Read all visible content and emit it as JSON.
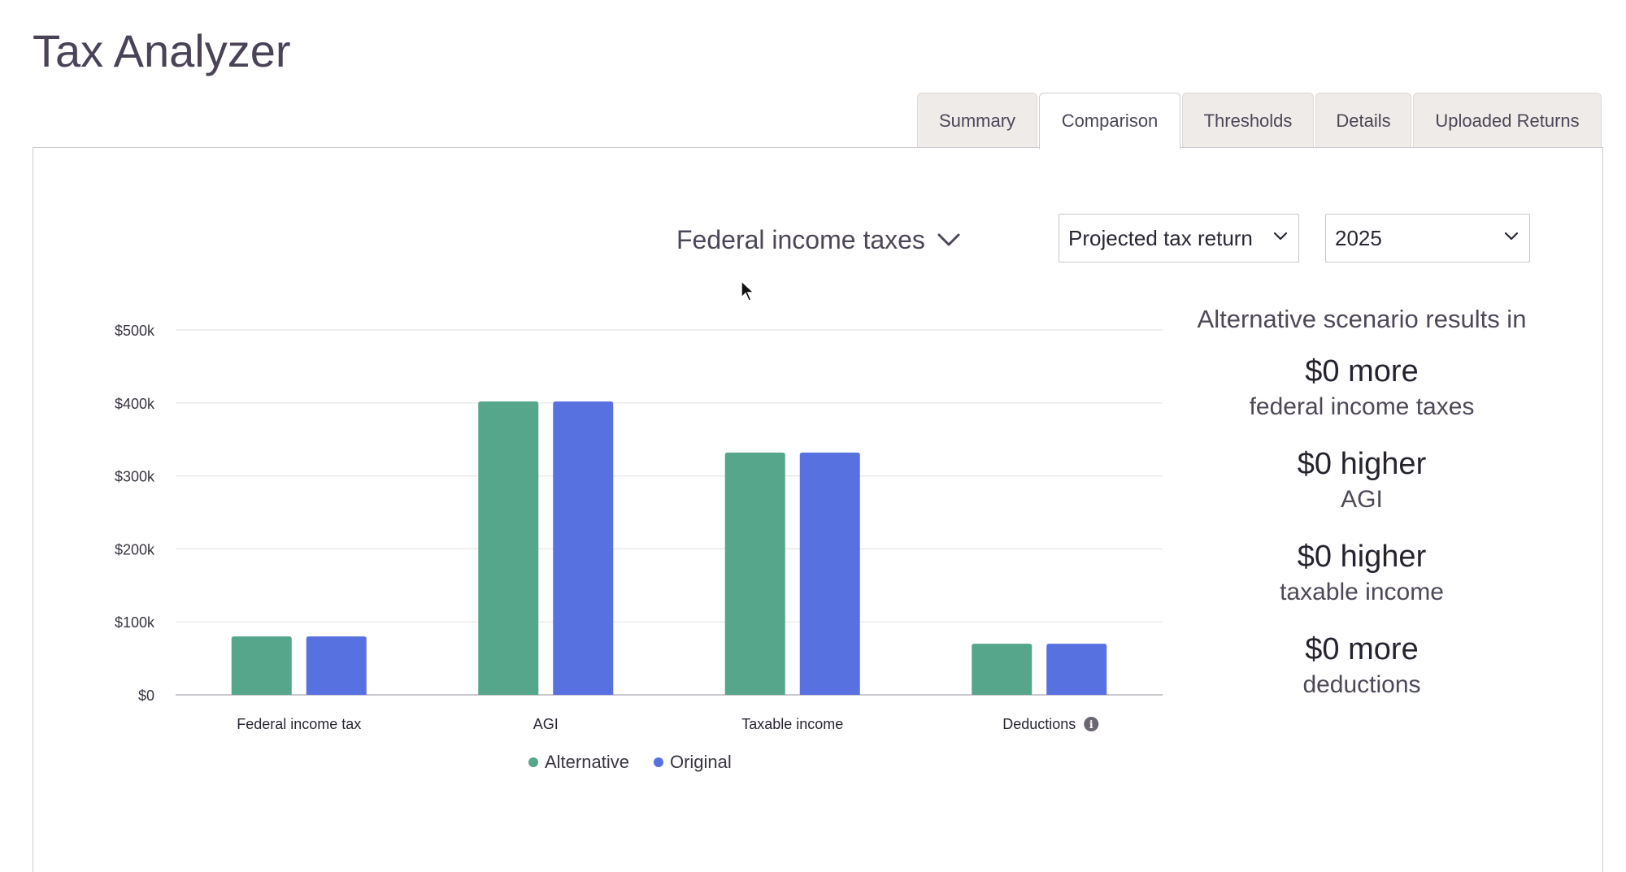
{
  "app": {
    "title": "Tax Analyzer"
  },
  "tabs": [
    {
      "label": "Summary",
      "active": false
    },
    {
      "label": "Comparison",
      "active": true
    },
    {
      "label": "Thresholds",
      "active": false
    },
    {
      "label": "Details",
      "active": false
    },
    {
      "label": "Uploaded Returns",
      "active": false
    }
  ],
  "controls": {
    "metric_label": "Federal income taxes",
    "return_type": "Projected tax return",
    "year": "2025"
  },
  "results": {
    "title": "Alternative scenario results in",
    "items": [
      {
        "value": "$0 more",
        "label": "federal income taxes"
      },
      {
        "value": "$0 higher",
        "label": "AGI"
      },
      {
        "value": "$0 higher",
        "label": "taxable income"
      },
      {
        "value": "$0 more",
        "label": "deductions"
      }
    ]
  },
  "colors": {
    "alternative": "#55a68a",
    "original": "#5871e0"
  },
  "chart_data": {
    "type": "bar",
    "categories": [
      "Federal income tax",
      "AGI",
      "Taxable income",
      "Deductions"
    ],
    "series": [
      {
        "name": "Alternative",
        "values": [
          80000,
          402000,
          332000,
          70000
        ]
      },
      {
        "name": "Original",
        "values": [
          80000,
          402000,
          332000,
          70000
        ]
      }
    ],
    "ylim": [
      0,
      500000
    ],
    "yticks": [
      "$0",
      "$100k",
      "$200k",
      "$300k",
      "$400k",
      "$500k"
    ],
    "grid": true,
    "legend": "bottom",
    "info_icon_on": "Deductions"
  }
}
